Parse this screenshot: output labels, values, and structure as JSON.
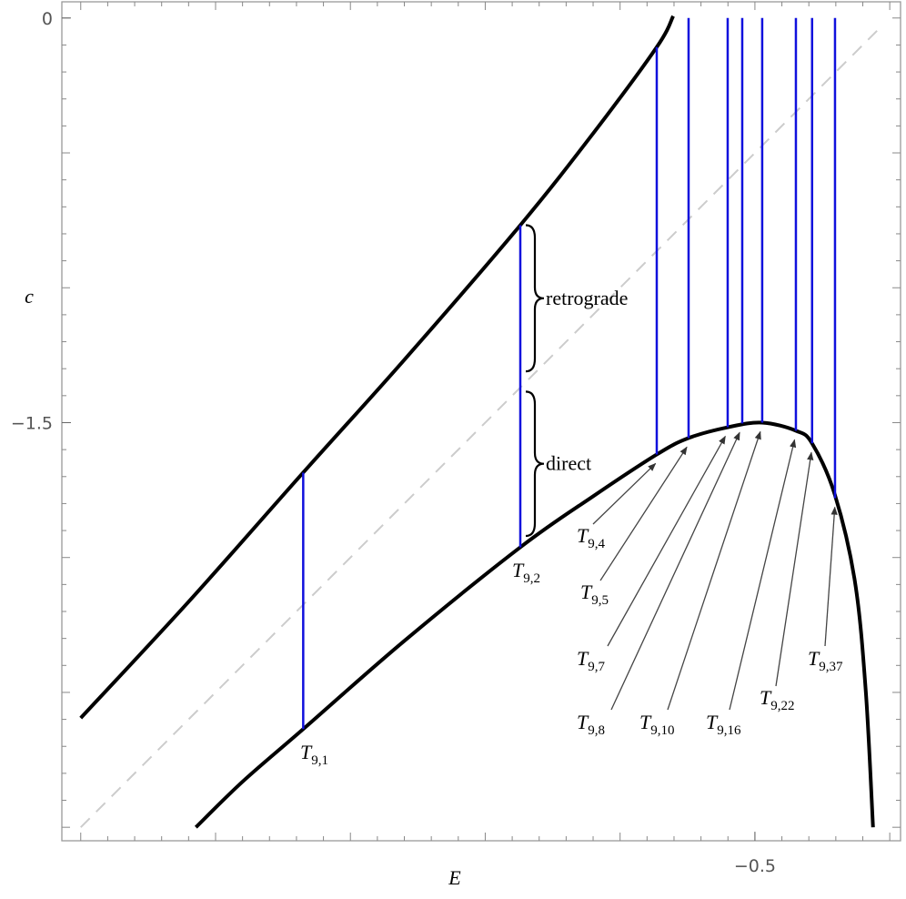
{
  "chart_data": {
    "type": "line",
    "x_label": "E",
    "y_label": "c",
    "xlim": [
      -3.07,
      0.04
    ],
    "ylim": [
      -3.05,
      0.06
    ],
    "xticks": [
      {
        "value": -0.5,
        "label": "−0.5"
      }
    ],
    "yticks": [
      0,
      {
        "value": -1.5,
        "label": "−1.5"
      }
    ],
    "major_tick_step": 0.5,
    "minor_tick_step": 0.1,
    "series": [
      {
        "color": "#000000",
        "style": "solid",
        "x": [
          -3.0,
          -2.6,
          -2.175,
          -1.8,
          -1.37,
          -1.1,
          -0.864,
          -0.803
        ],
        "values": [
          -2.595,
          -2.164,
          -1.685,
          -1.267,
          -0.768,
          -0.428,
          -0.108,
          0.007
        ]
      },
      {
        "color": "#000000",
        "style": "solid",
        "x": [
          -2.573,
          -2.4,
          -2.175,
          -1.8,
          -1.37,
          -1.1,
          -0.864,
          -0.746,
          -0.6,
          -0.473,
          -0.348,
          -0.288,
          -0.203,
          -0.129,
          -0.089,
          -0.062
        ],
        "values": [
          -3.0,
          -2.831,
          -2.636,
          -2.309,
          -1.962,
          -1.773,
          -1.618,
          -1.557,
          -1.517,
          -1.5,
          -1.53,
          -1.577,
          -1.769,
          -2.09,
          -2.494,
          -3.0
        ]
      },
      {
        "color": "#cccccc",
        "style": "dashed",
        "x": [
          -3.0,
          -0.03
        ],
        "values": [
          -3.0,
          -0.03
        ]
      }
    ],
    "segments_color": "#1010dd",
    "segments": [
      {
        "x": -2.175,
        "y_low": -2.636,
        "y_high": -1.685,
        "label": "T",
        "sub": "9,1"
      },
      {
        "x": -1.37,
        "y_low": -1.962,
        "y_high": -0.768,
        "label": "T",
        "sub": "9,2"
      },
      {
        "x": -0.864,
        "y_low": -1.618,
        "y_high": -0.108,
        "label": "T",
        "sub": "9,4"
      },
      {
        "x": -0.746,
        "y_low": -1.557,
        "y_high": 0,
        "label": "T",
        "sub": "9,5"
      },
      {
        "x": -0.601,
        "y_low": -1.517,
        "y_high": 0,
        "label": "T",
        "sub": "9,7"
      },
      {
        "x": -0.547,
        "y_low": -1.503,
        "y_high": 0,
        "label": "T",
        "sub": "9,8"
      },
      {
        "x": -0.473,
        "y_low": -1.5,
        "y_high": 0,
        "label": "T",
        "sub": "9,10"
      },
      {
        "x": -0.348,
        "y_low": -1.53,
        "y_high": 0,
        "label": "T",
        "sub": "9,16"
      },
      {
        "x": -0.288,
        "y_low": -1.577,
        "y_high": 0,
        "label": "T",
        "sub": "9,22"
      },
      {
        "x": -0.203,
        "y_low": -1.78,
        "y_high": 0,
        "label": "T",
        "sub": "9,37"
      }
    ],
    "annotations": [
      {
        "text": "retrograde",
        "y_top": -0.768,
        "y_bottom": -1.31
      },
      {
        "text": "direct",
        "y_top": -1.385,
        "y_bottom": -1.92
      }
    ]
  }
}
